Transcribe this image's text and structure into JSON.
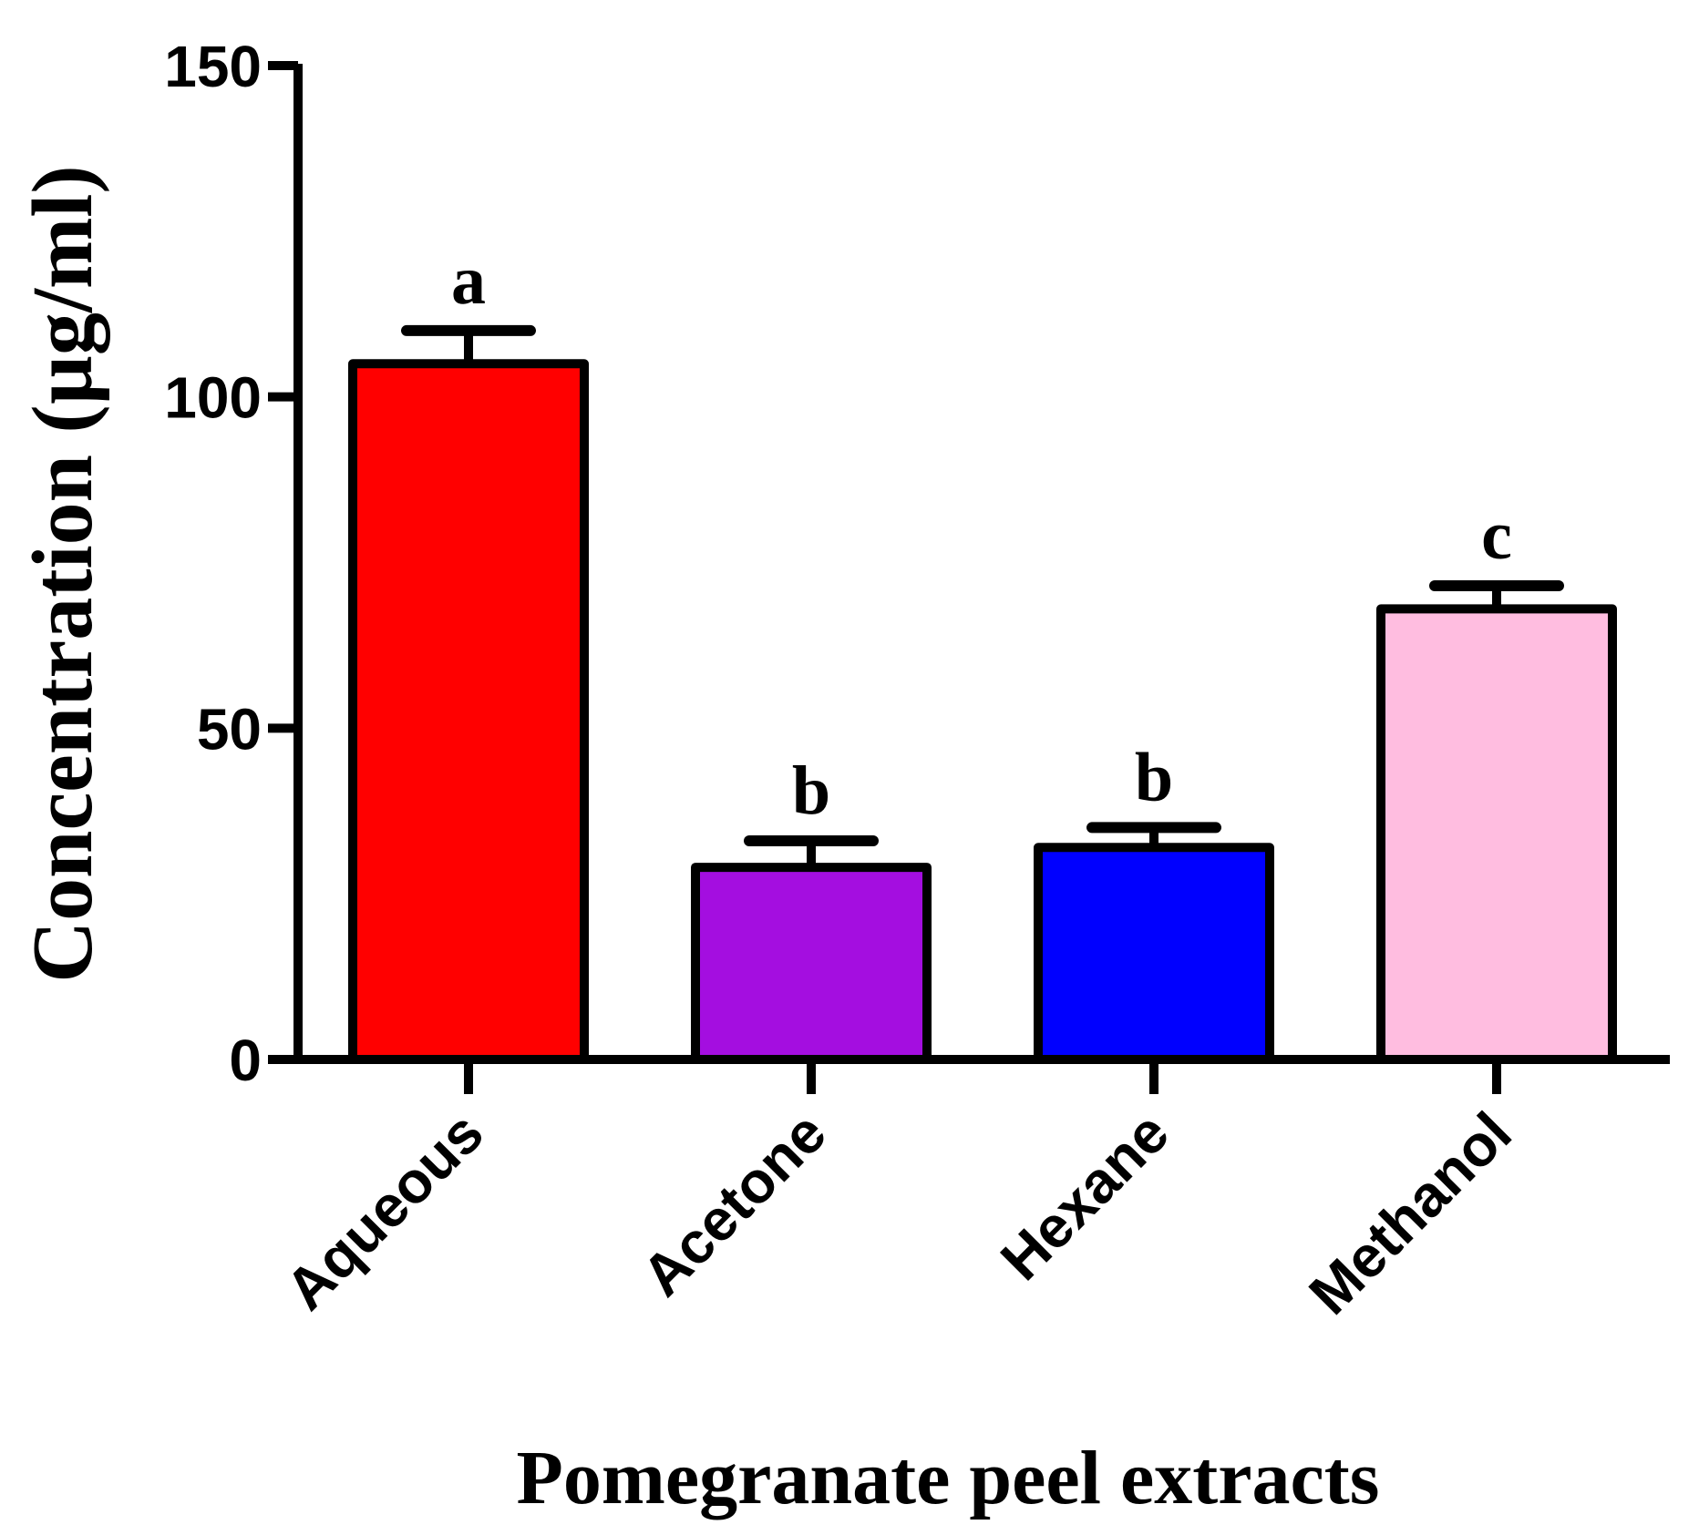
{
  "chart_data": {
    "type": "bar",
    "title": "",
    "xlabel": "Pomegranate peel extracts",
    "ylabel": "Concentration (µg/ml)",
    "ylim": [
      0,
      150
    ],
    "yticks": [
      0,
      50,
      100,
      150
    ],
    "ytick_labels": [
      "0",
      "50",
      "100",
      "150"
    ],
    "grid": false,
    "legend": "none",
    "categories": [
      "Aqueous",
      "Acetone",
      "Hexane",
      "Methanol"
    ],
    "values": [
      105,
      29,
      32,
      68
    ],
    "errors": [
      5,
      4,
      3,
      3.5
    ],
    "significance_letters": [
      "a",
      "b",
      "b",
      "c"
    ],
    "colors": [
      "#ff0000",
      "#a40ee0",
      "#0000ff",
      "#ffbde0"
    ]
  }
}
